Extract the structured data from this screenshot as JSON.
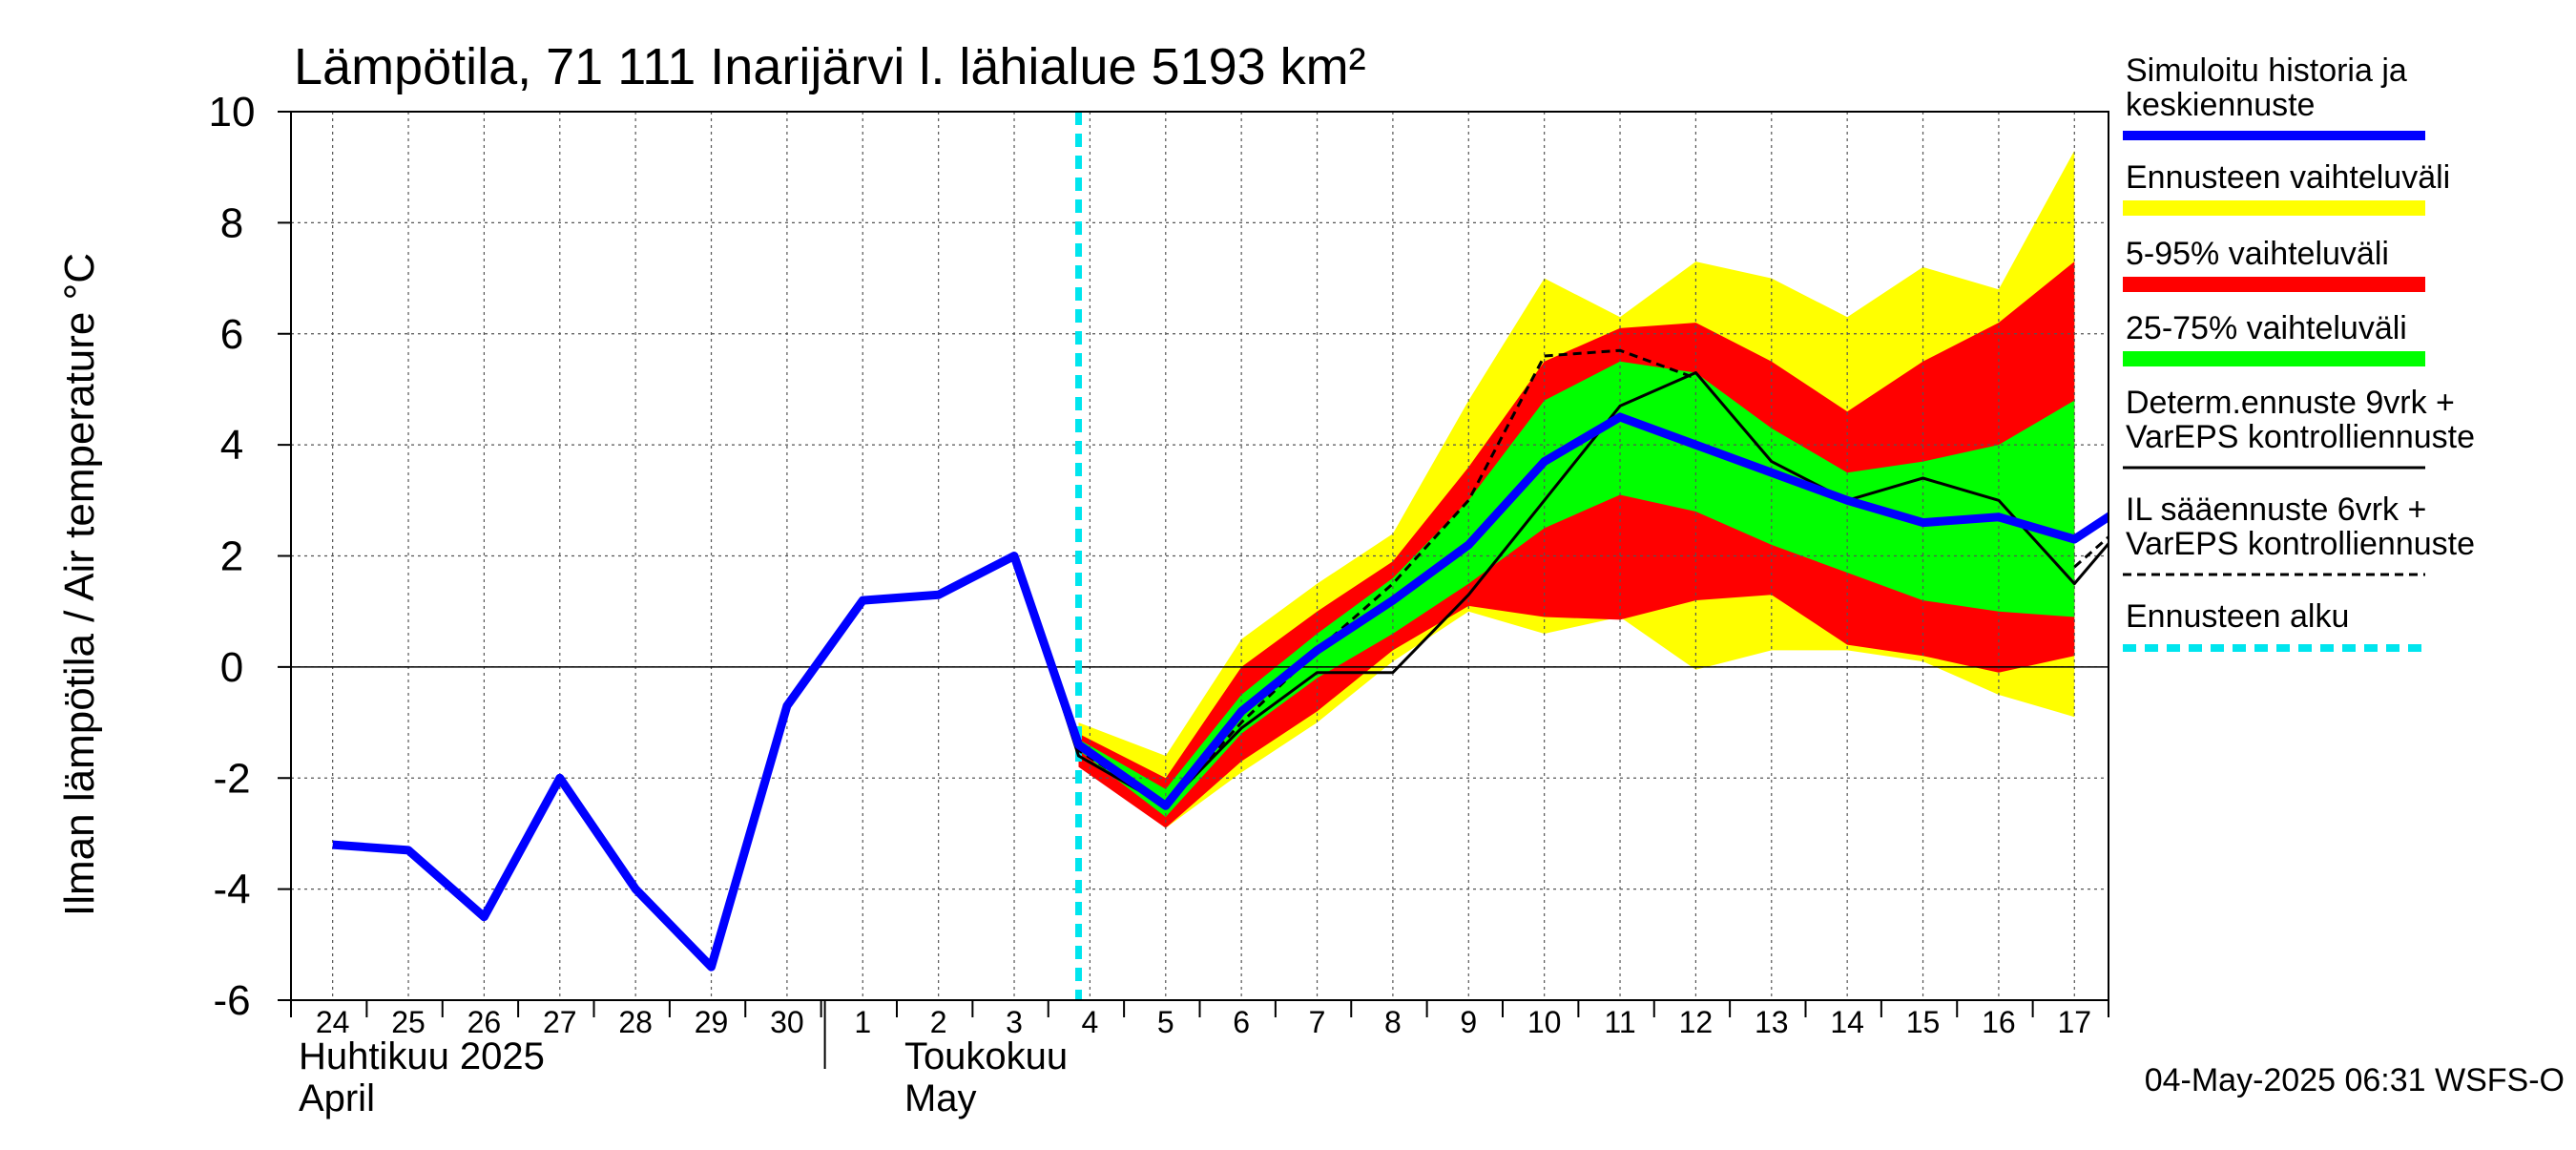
{
  "chart_data": {
    "type": "area",
    "title": "Lämpötila, 71 111 Inarijärvi l. lähialue 5193 km²",
    "ylabel": "Ilman lämpötila / Air temperature    °C",
    "ylim": [
      -6,
      10
    ],
    "yticks": [
      -6,
      -4,
      -2,
      0,
      2,
      4,
      6,
      8,
      10
    ],
    "x_day_labels": [
      "24",
      "25",
      "26",
      "27",
      "28",
      "29",
      "30",
      "1",
      "2",
      "3",
      "4",
      "5",
      "6",
      "7",
      "8",
      "9",
      "10",
      "11",
      "12",
      "13",
      "14",
      "15",
      "16",
      "17"
    ],
    "month_labels": [
      {
        "fi": "Huhtikuu  2025",
        "en": "April"
      },
      {
        "fi": "Toukokuu",
        "en": "May"
      }
    ],
    "forecast_start": 10.85,
    "footer": "04-May-2025 06:31 WSFS-O",
    "legend": [
      {
        "id": "sim",
        "label": "Simuloitu historia ja keskiennuste",
        "color": "#0000ff"
      },
      {
        "id": "range",
        "label": "Ennusteen vaihteluväli",
        "color": "#ffff00"
      },
      {
        "id": "p595",
        "label": "5-95% vaihteluväli",
        "color": "#ff0000"
      },
      {
        "id": "p2575",
        "label": "25-75% vaihteluväli",
        "color": "#00ff00"
      },
      {
        "id": "determ",
        "label": "Determ.ennuste 9vrk + VarEPS kontrolliennuste",
        "color": "#000000"
      },
      {
        "id": "il",
        "label": "IL sääennuste 6vrk  +   VarEPS kontrolliennuste",
        "color": "#000000"
      },
      {
        "id": "start",
        "label": "Ennusteen alku",
        "color": "#00e5ee"
      }
    ],
    "band_x": [
      10.85,
      12,
      13,
      14,
      15,
      16,
      17,
      18,
      19,
      20,
      21,
      22,
      23,
      24
    ],
    "range_low": [
      -1.7,
      -2.9,
      -1.9,
      -1.0,
      0.1,
      1.0,
      0.6,
      0.9,
      -0.05,
      0.3,
      0.3,
      0.1,
      -0.5,
      -0.9
    ],
    "range_high": [
      -1.0,
      -1.6,
      0.5,
      1.5,
      2.4,
      4.8,
      7.0,
      6.3,
      7.3,
      7.0,
      6.3,
      7.2,
      6.8,
      9.3
    ],
    "p5": [
      -1.8,
      -2.9,
      -1.7,
      -0.8,
      0.3,
      1.1,
      0.9,
      0.85,
      1.2,
      1.3,
      0.4,
      0.2,
      -0.1,
      0.2
    ],
    "p95": [
      -1.2,
      -2.0,
      0.0,
      1.0,
      1.9,
      3.6,
      5.5,
      6.1,
      6.2,
      5.5,
      4.6,
      5.5,
      6.2,
      7.3
    ],
    "p25": [
      -1.5,
      -2.7,
      -1.2,
      -0.2,
      0.6,
      1.5,
      2.5,
      3.1,
      2.8,
      2.2,
      1.7,
      1.2,
      1.0,
      0.9
    ],
    "p75": [
      -1.3,
      -2.2,
      -0.5,
      0.6,
      1.6,
      3.0,
      4.8,
      5.5,
      5.3,
      4.3,
      3.5,
      3.7,
      4.0,
      4.8
    ],
    "series": [
      {
        "id": "sim",
        "name": "Simuloitu historia ja keskiennuste",
        "x": [
          1,
          2,
          3,
          4,
          5,
          6,
          7,
          8,
          9,
          10,
          10.85,
          12,
          13,
          14,
          15,
          16,
          17,
          18,
          19,
          20,
          21,
          22,
          23,
          24,
          25
        ],
        "y": [
          -3.2,
          -3.3,
          -4.5,
          -2.0,
          -4.0,
          -5.4,
          -0.7,
          1.2,
          1.3,
          2.0,
          -1.4,
          -2.5,
          -0.8,
          0.3,
          1.2,
          2.2,
          3.7,
          4.5,
          4.0,
          3.5,
          3.0,
          2.6,
          2.7,
          2.3,
          3.2
        ]
      },
      {
        "id": "determ",
        "name": "Determ.ennuste 9vrk + VarEPS kontrolliennuste",
        "x": [
          10,
          10.85,
          12,
          13,
          14,
          15,
          16,
          17,
          18,
          19,
          20,
          21,
          22,
          23,
          24,
          25
        ],
        "y": [
          2.0,
          -1.6,
          -2.5,
          -1.1,
          -0.1,
          -0.1,
          1.3,
          3.0,
          4.7,
          5.3,
          3.7,
          3.0,
          3.4,
          3.0,
          1.5,
          3.1
        ]
      },
      {
        "id": "il",
        "name": "IL sääennuste 6vrk  +   VarEPS kontrolliennuste",
        "x": [
          10,
          10.85,
          12,
          13,
          14,
          15,
          16,
          17,
          18,
          19
        ],
        "y": [
          2.0,
          -1.5,
          -2.5,
          -1.0,
          0.3,
          1.5,
          3.0,
          5.6,
          5.7,
          5.2
        ]
      },
      {
        "id": "il_tail",
        "name": "",
        "x": [
          24,
          25
        ],
        "y": [
          1.8,
          3.0
        ]
      }
    ]
  }
}
